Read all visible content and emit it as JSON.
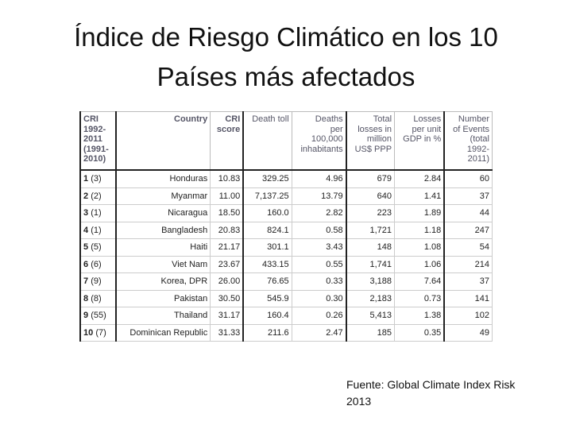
{
  "title": [
    "Índice de Riesgo Climático en los 10",
    "Países más afectados"
  ],
  "table": {
    "header": [
      [
        "CRI",
        "1992-",
        "2011",
        "(1991-",
        "2010)"
      ],
      [
        "Country"
      ],
      [
        "CRI",
        "score"
      ],
      [
        "Death toll"
      ],
      [
        "Deaths",
        "per",
        "100,000",
        "inhabitants"
      ],
      [
        "Total",
        "losses in",
        "million",
        "US$ PPP"
      ],
      [
        "Losses",
        "per unit",
        "GDP in %"
      ],
      [
        "Number",
        "of Events",
        "(total",
        "1992-",
        "2011)"
      ]
    ],
    "rows": [
      [
        "1",
        "(3)",
        "Honduras",
        "10.83",
        "329.25",
        "4.96",
        "679",
        "2.84",
        "60"
      ],
      [
        "2",
        "(2)",
        "Myanmar",
        "11.00",
        "7,137.25",
        "13.79",
        "640",
        "1.41",
        "37"
      ],
      [
        "3",
        "(1)",
        "Nicaragua",
        "18.50",
        "160.0",
        "2.82",
        "223",
        "1.89",
        "44"
      ],
      [
        "4",
        "(1)",
        "Bangladesh",
        "20.83",
        "824.1",
        "0.58",
        "1,721",
        "1.18",
        "247"
      ],
      [
        "5",
        "(5)",
        "Haiti",
        "21.17",
        "301.1",
        "3.43",
        "148",
        "1.08",
        "54"
      ],
      [
        "6",
        "(6)",
        "Viet Nam",
        "23.67",
        "433.15",
        "0.55",
        "1,741",
        "1.06",
        "214"
      ],
      [
        "7",
        "(9)",
        "Korea, DPR",
        "26.00",
        "76.65",
        "0.33",
        "3,188",
        "7.64",
        "37"
      ],
      [
        "8",
        "(8)",
        "Pakistan",
        "30.50",
        "545.9",
        "0.30",
        "2,183",
        "0.73",
        "141"
      ],
      [
        "9",
        "(55)",
        "Thailand",
        "31.17",
        "160.4",
        "0.26",
        "5,413",
        "1.38",
        "102"
      ],
      [
        "10",
        "(7)",
        "Dominican Republic",
        "31.33",
        "211.6",
        "2.47",
        "185",
        "0.35",
        "49"
      ]
    ]
  },
  "source": [
    "Fuente: Global Climate Index Risk",
    "2013"
  ]
}
